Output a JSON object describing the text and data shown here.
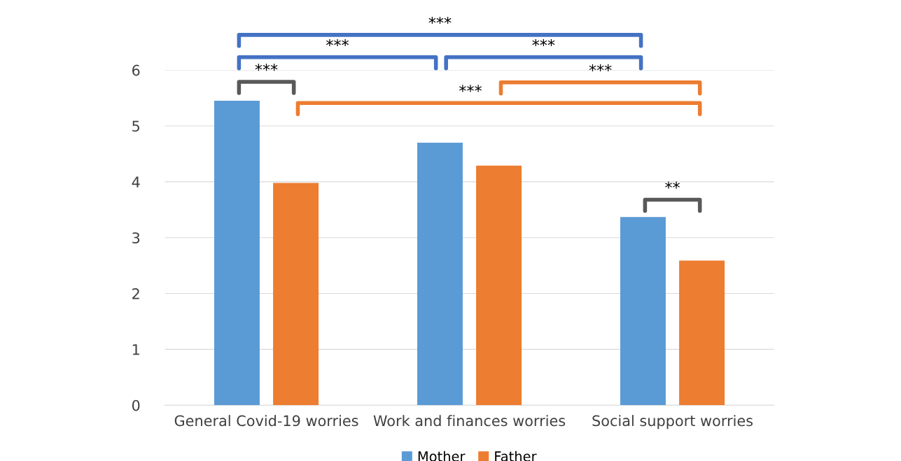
{
  "chart_data": {
    "type": "bar",
    "categories": [
      "General Covid-19 worries",
      "Work and finances worries",
      "Social support worries"
    ],
    "series": [
      {
        "name": "Mother",
        "color": "#5b9bd5",
        "values": [
          5.45,
          4.7,
          3.37
        ]
      },
      {
        "name": "Father",
        "color": "#ed7d31",
        "values": [
          3.98,
          4.29,
          2.59
        ]
      }
    ],
    "ylim": [
      0,
      6
    ],
    "yticks": [
      0,
      1,
      2,
      3,
      4,
      5,
      6
    ],
    "grid": "y",
    "legend": "bottom",
    "annotations": [
      "***",
      "***",
      "***",
      "***",
      "***",
      "***",
      "**"
    ]
  }
}
